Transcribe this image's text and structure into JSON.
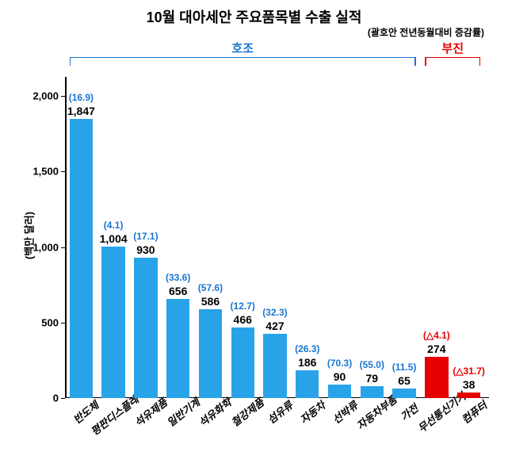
{
  "chart": {
    "type": "bar",
    "title": "10월 대아세안 주요품목별 수출 실적",
    "title_fontsize": 18,
    "subtitle": "(괄호안 전년동월대비 증감률)",
    "subtitle_fontsize": 12,
    "ylabel": "(백만 달러)",
    "ylabel_fontsize": 13,
    "ylim": [
      0,
      2100
    ],
    "yticks": [
      0,
      500,
      1000,
      1500,
      2000
    ],
    "ytick_fontsize": 13,
    "background_color": "#ffffff",
    "bar_width_ratio": 0.72,
    "value_fontsize": 14,
    "pct_fontsize": 12,
    "xlabel_fontsize": 13,
    "groups": [
      {
        "label": "호조",
        "color": "#1a75d1",
        "start": 0,
        "end": 10
      },
      {
        "label": "부진",
        "color": "#e60000",
        "start": 11,
        "end": 12
      }
    ],
    "group_label_fontsize": 15,
    "bars": [
      {
        "category": "반도체",
        "value": 1847,
        "value_label": "1,847",
        "pct": "(16.9)",
        "color": "#29a3e8",
        "pct_color": "#1a75d1"
      },
      {
        "category": "평판디스플레이",
        "value": 1004,
        "value_label": "1,004",
        "pct": "(4.1)",
        "color": "#29a3e8",
        "pct_color": "#1a75d1"
      },
      {
        "category": "석유제품",
        "value": 930,
        "value_label": "930",
        "pct": "(17.1)",
        "color": "#29a3e8",
        "pct_color": "#1a75d1"
      },
      {
        "category": "일반기계",
        "value": 656,
        "value_label": "656",
        "pct": "(33.6)",
        "color": "#29a3e8",
        "pct_color": "#1a75d1"
      },
      {
        "category": "석유화학",
        "value": 586,
        "value_label": "586",
        "pct": "(57.6)",
        "color": "#29a3e8",
        "pct_color": "#1a75d1"
      },
      {
        "category": "철강제품",
        "value": 466,
        "value_label": "466",
        "pct": "(12.7)",
        "color": "#29a3e8",
        "pct_color": "#1a75d1"
      },
      {
        "category": "섬유류",
        "value": 427,
        "value_label": "427",
        "pct": "(32.3)",
        "color": "#29a3e8",
        "pct_color": "#1a75d1"
      },
      {
        "category": "자동차",
        "value": 186,
        "value_label": "186",
        "pct": "(26.3)",
        "color": "#29a3e8",
        "pct_color": "#1a75d1"
      },
      {
        "category": "선박류",
        "value": 90,
        "value_label": "90",
        "pct": "(70.3)",
        "color": "#29a3e8",
        "pct_color": "#1a75d1"
      },
      {
        "category": "자동차부품",
        "value": 79,
        "value_label": "79",
        "pct": "(55.0)",
        "color": "#29a3e8",
        "pct_color": "#1a75d1"
      },
      {
        "category": "가전",
        "value": 65,
        "value_label": "65",
        "pct": "(11.5)",
        "color": "#29a3e8",
        "pct_color": "#1a75d1"
      },
      {
        "category": "무선통신기기",
        "value": 274,
        "value_label": "274",
        "pct": "(△4.1)",
        "color": "#e60000",
        "pct_color": "#e60000"
      },
      {
        "category": "컴퓨터",
        "value": 38,
        "value_label": "38",
        "pct": "(△31.7)",
        "color": "#e60000",
        "pct_color": "#e60000"
      }
    ]
  }
}
